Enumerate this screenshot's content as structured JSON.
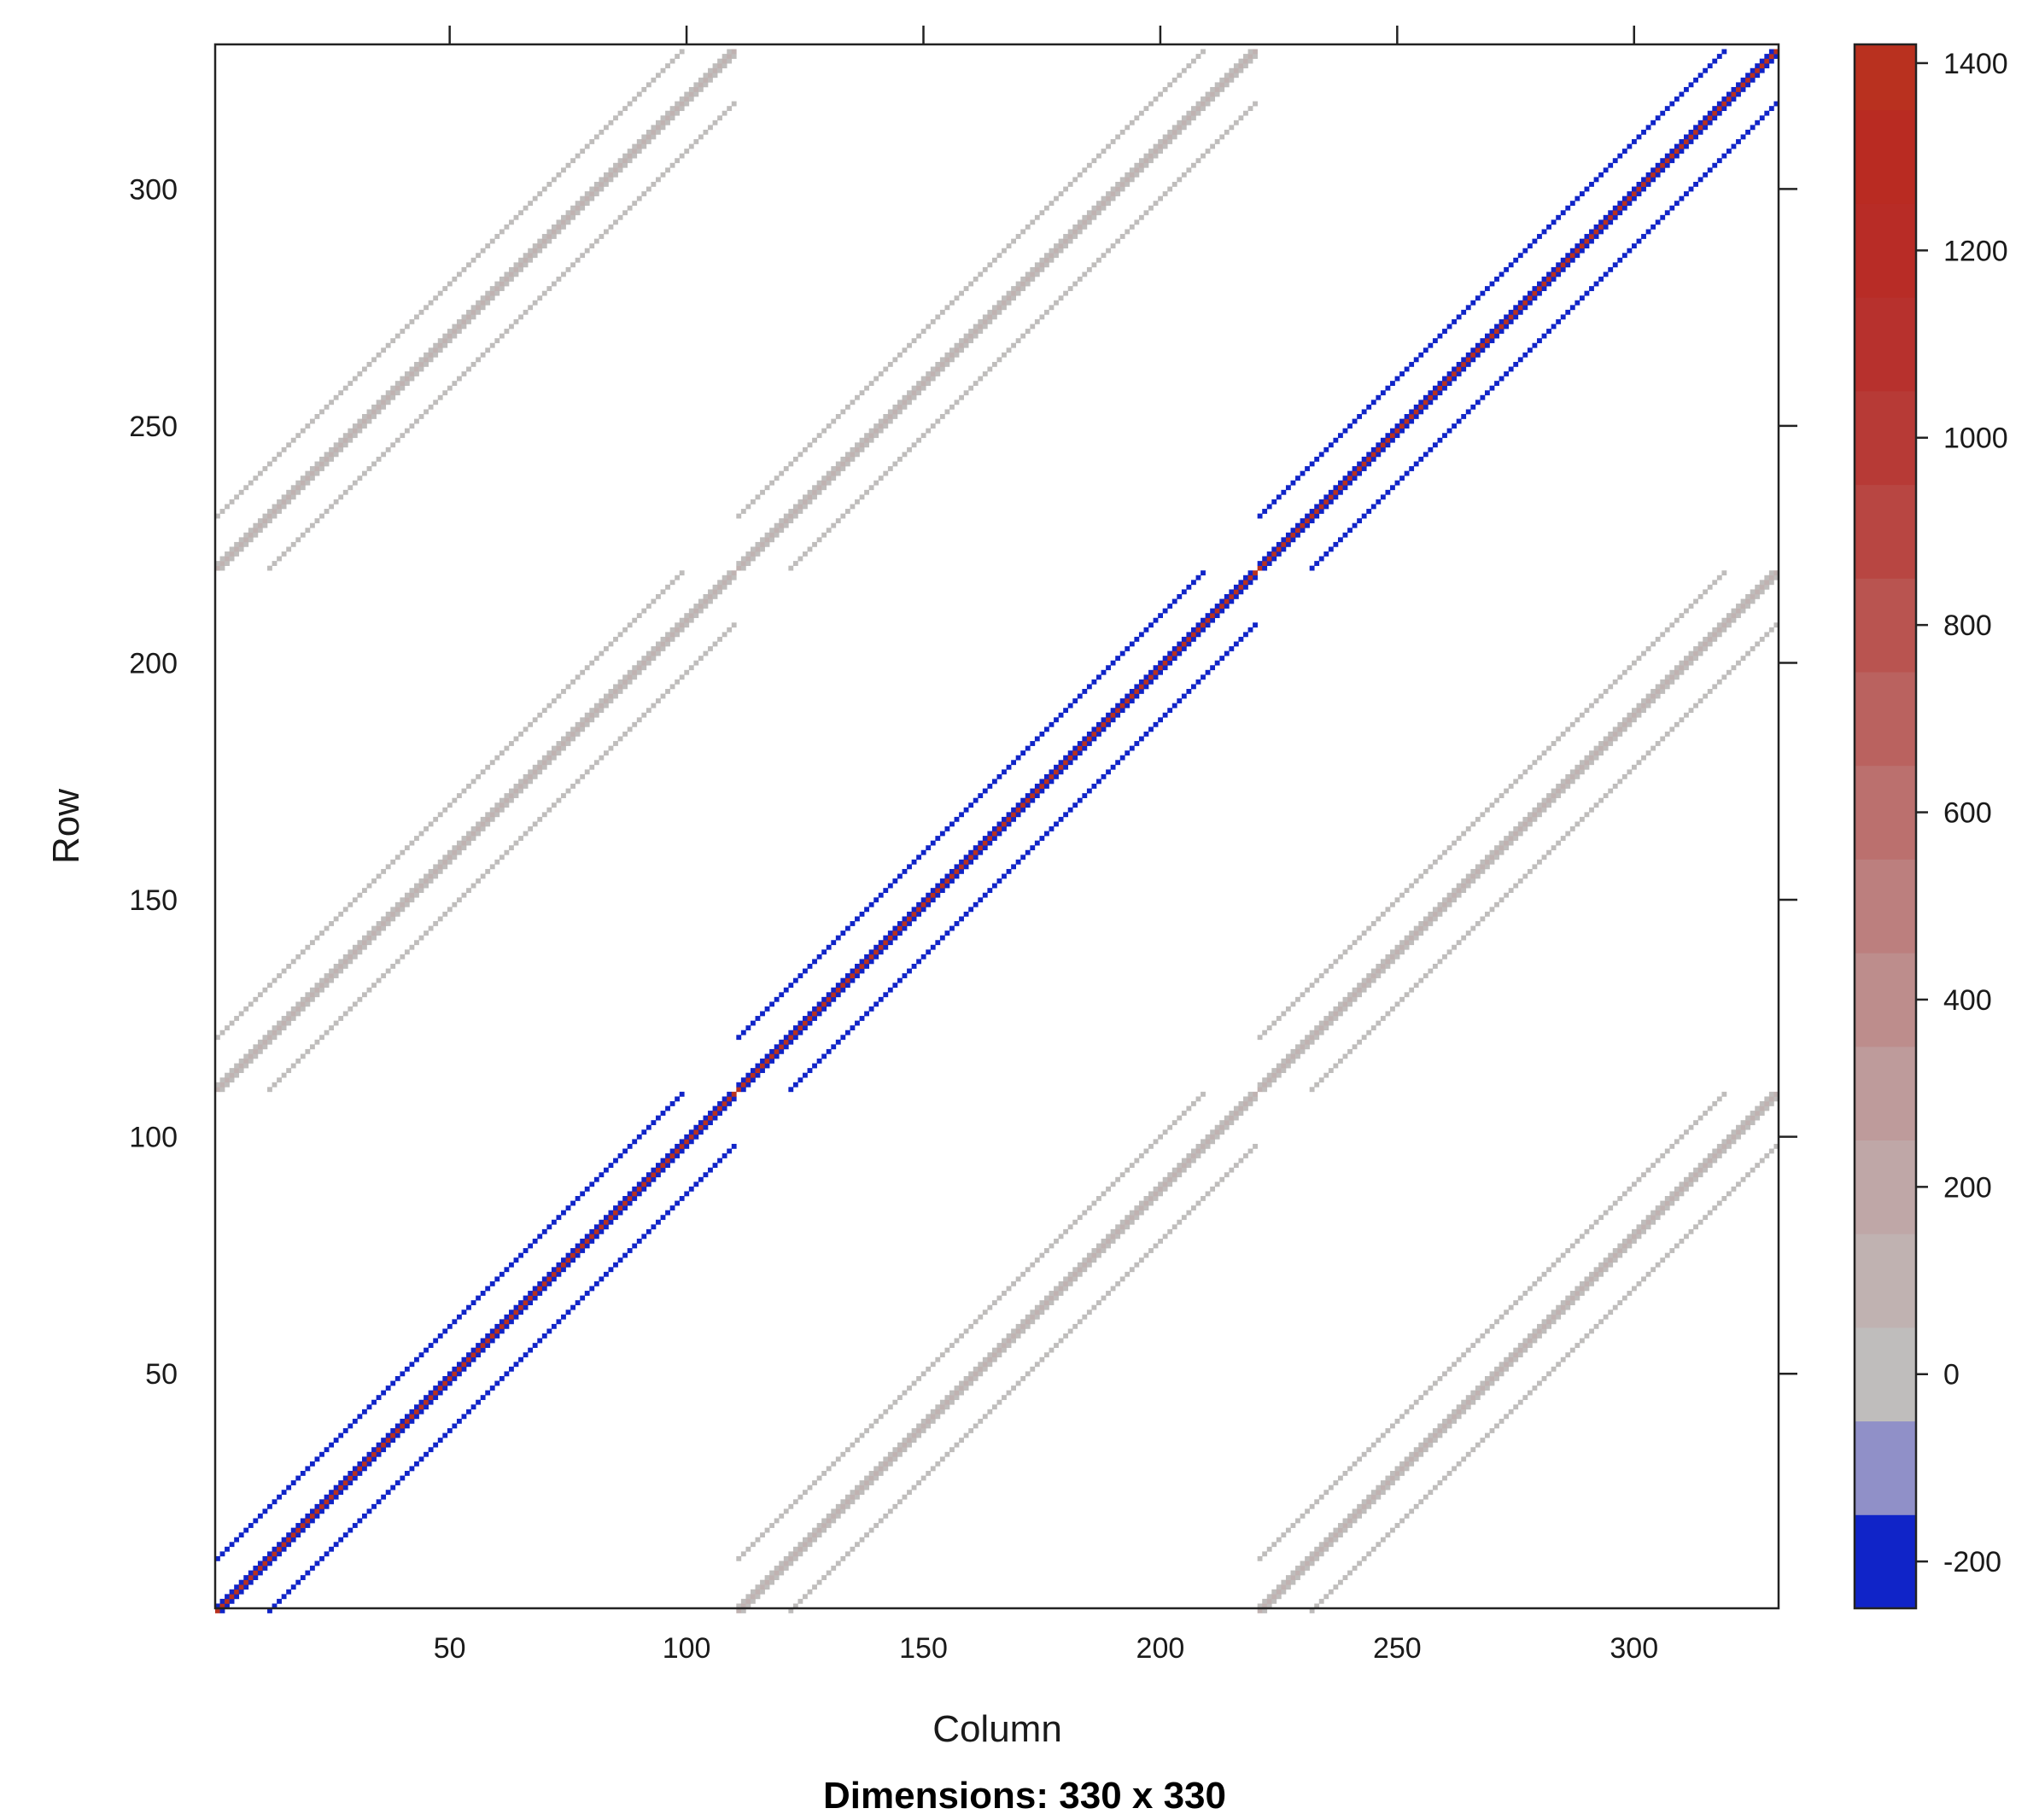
{
  "chart_data": {
    "type": "heatmap",
    "title": "Dimensions: 330 x 330",
    "xlabel": "Column",
    "ylabel": "Row",
    "xlim": [
      0.5,
      330.5
    ],
    "ylim": [
      330.5,
      0.5
    ],
    "x_ticks": [
      50,
      100,
      150,
      200,
      250,
      300
    ],
    "y_ticks": [
      50,
      100,
      150,
      200,
      250,
      300
    ],
    "matrix": {
      "rows": 330,
      "cols": 330,
      "blocks_per_side": 3,
      "block_size": 110,
      "band_offsets": [
        -11,
        -1,
        0,
        1,
        11
      ],
      "background": "empty (white)",
      "diagonal_block_values": {
        "main_diagonal": 1400,
        "off_diagonal_bands": -200
      },
      "other_block_values": {
        "main_diagonal": 100,
        "off_diagonal_bands": 0
      }
    },
    "colorbar": {
      "range": [
        -250,
        1420
      ],
      "ticks": [
        -200,
        0,
        200,
        400,
        600,
        800,
        1000,
        1200,
        1400
      ],
      "levels": [
        {
          "from": -250,
          "to": -150,
          "color": "#1024c8"
        },
        {
          "from": -150,
          "to": -50,
          "color": "#9090c8"
        },
        {
          "from": -50,
          "to": 50,
          "color": "#bfbdbc"
        },
        {
          "from": 50,
          "to": 150,
          "color": "#c0b2b1"
        },
        {
          "from": 150,
          "to": 250,
          "color": "#bfa7a7"
        },
        {
          "from": 250,
          "to": 350,
          "color": "#be9b9b"
        },
        {
          "from": 350,
          "to": 450,
          "color": "#bd8d8c"
        },
        {
          "from": 450,
          "to": 550,
          "color": "#bc7f7e"
        },
        {
          "from": 550,
          "to": 650,
          "color": "#bb706e"
        },
        {
          "from": 650,
          "to": 750,
          "color": "#ba625f"
        },
        {
          "from": 750,
          "to": 850,
          "color": "#b95450"
        },
        {
          "from": 850,
          "to": 950,
          "color": "#b84642"
        },
        {
          "from": 950,
          "to": 1050,
          "color": "#b73a36"
        },
        {
          "from": 1050,
          "to": 1150,
          "color": "#b7312d"
        },
        {
          "from": 1150,
          "to": 1250,
          "color": "#b82c26"
        },
        {
          "from": 1250,
          "to": 1350,
          "color": "#b92b22"
        },
        {
          "from": 1350,
          "to": 1420,
          "color": "#b9311f"
        }
      ]
    }
  }
}
